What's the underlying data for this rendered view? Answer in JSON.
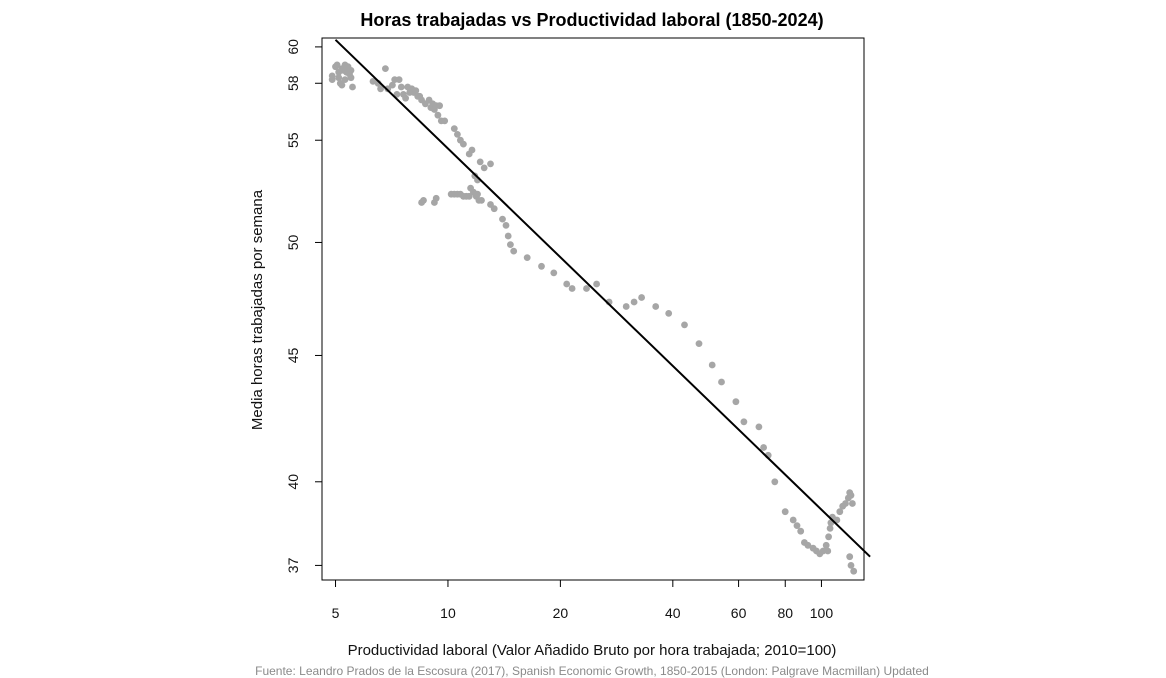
{
  "chart_data": {
    "type": "scatter",
    "title": "Horas trabajadas vs Productividad laboral (1850-2024)",
    "xlabel": "Productividad laboral (Valor Añadido Bruto por hora trabajada; 2010=100)",
    "ylabel": "Media horas trabajadas por semana",
    "source": "Fuente: Leandro Prados de la Escosura (2017), Spanish Economic Growth, 1850-2015 (London: Palgrave Macmillan) Updated",
    "x_scale": "log",
    "y_scale": "log",
    "xlim": [
      4.6,
      130
    ],
    "ylim": [
      36.5,
      60.5
    ],
    "x_ticks": [
      5,
      10,
      20,
      40,
      60,
      80,
      100
    ],
    "y_ticks": [
      37,
      40,
      45,
      50,
      55,
      58,
      60
    ],
    "grid": false,
    "point_color": "#a6a6a6",
    "line_color": "#000000",
    "trend_line": {
      "x": [
        5.0,
        135.0
      ],
      "y": [
        60.4,
        37.3
      ]
    },
    "points": [
      [
        4.9,
        58.4
      ],
      [
        4.9,
        58.2
      ],
      [
        5.0,
        58.9
      ],
      [
        5.05,
        59.0
      ],
      [
        5.1,
        58.6
      ],
      [
        5.1,
        58.3
      ],
      [
        5.15,
        58.0
      ],
      [
        5.2,
        57.9
      ],
      [
        5.2,
        58.8
      ],
      [
        5.25,
        58.7
      ],
      [
        5.3,
        59.0
      ],
      [
        5.3,
        58.2
      ],
      [
        5.35,
        58.6
      ],
      [
        5.4,
        58.9
      ],
      [
        5.45,
        58.5
      ],
      [
        5.5,
        58.3
      ],
      [
        5.55,
        57.8
      ],
      [
        5.5,
        58.7
      ],
      [
        6.3,
        58.1
      ],
      [
        6.5,
        58.0
      ],
      [
        6.6,
        57.7
      ],
      [
        6.8,
        58.8
      ],
      [
        6.9,
        57.7
      ],
      [
        7.1,
        57.9
      ],
      [
        7.2,
        58.2
      ],
      [
        7.3,
        57.4
      ],
      [
        7.4,
        58.2
      ],
      [
        7.5,
        57.8
      ],
      [
        7.6,
        57.4
      ],
      [
        7.7,
        57.2
      ],
      [
        7.8,
        57.8
      ],
      [
        7.9,
        57.5
      ],
      [
        8.0,
        57.7
      ],
      [
        8.1,
        57.5
      ],
      [
        8.2,
        57.6
      ],
      [
        8.3,
        57.3
      ],
      [
        8.4,
        57.3
      ],
      [
        8.5,
        57.1
      ],
      [
        8.7,
        56.9
      ],
      [
        8.9,
        57.1
      ],
      [
        9.0,
        56.7
      ],
      [
        9.1,
        56.9
      ],
      [
        9.2,
        56.6
      ],
      [
        9.3,
        56.8
      ],
      [
        9.4,
        56.3
      ],
      [
        9.5,
        56.8
      ],
      [
        9.6,
        56.0
      ],
      [
        9.8,
        56.0
      ],
      [
        10.4,
        55.6
      ],
      [
        10.6,
        55.3
      ],
      [
        10.8,
        55.0
      ],
      [
        11.0,
        54.8
      ],
      [
        11.4,
        54.3
      ],
      [
        11.6,
        54.5
      ],
      [
        12.2,
        53.9
      ],
      [
        12.5,
        53.6
      ],
      [
        13.0,
        53.8
      ],
      [
        11.8,
        53.2
      ],
      [
        12.0,
        53.0
      ],
      [
        11.5,
        52.6
      ],
      [
        11.7,
        52.4
      ],
      [
        11.9,
        52.2
      ],
      [
        12.1,
        52.0
      ],
      [
        12.3,
        52.0
      ],
      [
        11.4,
        52.2
      ],
      [
        11.2,
        52.2
      ],
      [
        11.0,
        52.2
      ],
      [
        10.8,
        52.3
      ],
      [
        10.6,
        52.3
      ],
      [
        10.4,
        52.3
      ],
      [
        10.2,
        52.3
      ],
      [
        9.3,
        52.1
      ],
      [
        9.2,
        51.9
      ],
      [
        8.6,
        52.0
      ],
      [
        8.5,
        51.9
      ],
      [
        12.0,
        52.3
      ],
      [
        13.0,
        51.8
      ],
      [
        13.3,
        51.6
      ],
      [
        14.0,
        51.1
      ],
      [
        14.3,
        50.8
      ],
      [
        14.5,
        50.3
      ],
      [
        14.7,
        49.9
      ],
      [
        15.0,
        49.6
      ],
      [
        16.3,
        49.3
      ],
      [
        17.8,
        48.9
      ],
      [
        19.2,
        48.6
      ],
      [
        20.8,
        48.1
      ],
      [
        21.5,
        47.9
      ],
      [
        23.5,
        47.9
      ],
      [
        25.0,
        48.1
      ],
      [
        27.0,
        47.3
      ],
      [
        30.0,
        47.1
      ],
      [
        31.5,
        47.3
      ],
      [
        33.0,
        47.5
      ],
      [
        36.0,
        47.1
      ],
      [
        39.0,
        46.8
      ],
      [
        43.0,
        46.3
      ],
      [
        47.0,
        45.5
      ],
      [
        51.0,
        44.6
      ],
      [
        54.0,
        43.9
      ],
      [
        59.0,
        43.1
      ],
      [
        62.0,
        42.3
      ],
      [
        68.0,
        42.1
      ],
      [
        70.0,
        41.3
      ],
      [
        72.0,
        41.0
      ],
      [
        75.0,
        40.0
      ],
      [
        80.0,
        38.9
      ],
      [
        84.0,
        38.6
      ],
      [
        86.0,
        38.4
      ],
      [
        88.0,
        38.2
      ],
      [
        90.0,
        37.8
      ],
      [
        92.0,
        37.7
      ],
      [
        95.0,
        37.6
      ],
      [
        97.0,
        37.5
      ],
      [
        99.0,
        37.4
      ],
      [
        101.0,
        37.5
      ],
      [
        103.0,
        37.7
      ],
      [
        104.0,
        37.5
      ],
      [
        104.5,
        38.0
      ],
      [
        105.5,
        38.3
      ],
      [
        106.0,
        38.5
      ],
      [
        107.0,
        38.7
      ],
      [
        110.0,
        38.6
      ],
      [
        112.0,
        38.9
      ],
      [
        114.0,
        39.1
      ],
      [
        116.0,
        39.2
      ],
      [
        118.0,
        39.4
      ],
      [
        119.0,
        39.6
      ],
      [
        120.0,
        39.5
      ],
      [
        121.0,
        39.2
      ],
      [
        119.0,
        37.3
      ],
      [
        120.0,
        37.0
      ],
      [
        122.0,
        36.8
      ]
    ]
  }
}
